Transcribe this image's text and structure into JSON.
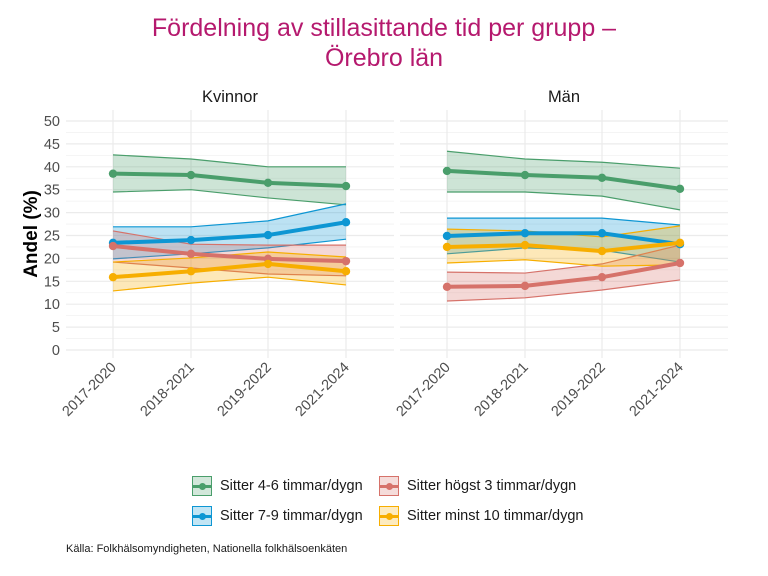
{
  "title_line1": "Fördelning av stillasittande tid per grupp –",
  "title_line2": "Örebro län",
  "caption": "Källa: Folkhälsomyndigheten, Nationella folkhälsoenkäten",
  "chart_data": {
    "type": "line",
    "title": "Fördelning av stillasittande tid per grupp – Örebro län",
    "ylabel": "Andel (%)",
    "xlabel": "",
    "ylim": [
      0,
      50
    ],
    "yticks": [
      "0",
      "5",
      "10",
      "15",
      "20",
      "25",
      "30",
      "35",
      "40",
      "45",
      "50"
    ],
    "categories": [
      "2017-2020",
      "2018-2021",
      "2019-2022",
      "2021-2024"
    ],
    "grid": true,
    "legend_position": "bottom",
    "panels": [
      {
        "name": "Kvinnor",
        "series": [
          {
            "name": "Sitter 4-6 timmar/dygn",
            "color": "#4a9e6b",
            "values": [
              38.5,
              38.2,
              36.5,
              35.8
            ],
            "lower": [
              34.5,
              35.0,
              33.2,
              31.7
            ],
            "upper": [
              42.6,
              41.7,
              40.0,
              40.0
            ]
          },
          {
            "name": "Sitter 7-9 timmar/dygn",
            "color": "#0d96d3",
            "values": [
              23.4,
              24.0,
              25.1,
              27.9
            ],
            "lower": [
              19.9,
              21.0,
              22.3,
              24.2
            ],
            "upper": [
              26.9,
              26.9,
              28.2,
              31.9
            ]
          },
          {
            "name": "Sitter högst 3 timmar/dygn",
            "color": "#d6726a",
            "values": [
              22.7,
              21.0,
              19.9,
              19.4
            ],
            "lower": [
              19.2,
              17.9,
              16.6,
              16.2
            ],
            "upper": [
              26.0,
              23.1,
              22.9,
              22.9
            ]
          },
          {
            "name": "Sitter minst 10 timmar/dygn",
            "color": "#f7ae00",
            "values": [
              15.9,
              17.2,
              18.8,
              17.2
            ],
            "lower": [
              12.9,
              14.6,
              15.9,
              14.2
            ],
            "upper": [
              19.2,
              20.1,
              21.4,
              20.3
            ]
          }
        ]
      },
      {
        "name": "Män",
        "series": [
          {
            "name": "Sitter 4-6 timmar/dygn",
            "color": "#4a9e6b",
            "values": [
              39.1,
              38.2,
              37.6,
              35.2
            ],
            "lower": [
              34.5,
              34.5,
              33.6,
              30.6
            ],
            "upper": [
              43.4,
              41.7,
              41.0,
              39.7
            ]
          },
          {
            "name": "Sitter 7-9 timmar/dygn",
            "color": "#0d96d3",
            "values": [
              24.9,
              25.5,
              25.5,
              23.1
            ],
            "lower": [
              21.0,
              22.3,
              21.8,
              19.2
            ],
            "upper": [
              28.8,
              28.8,
              28.8,
              27.3
            ]
          },
          {
            "name": "Sitter högst 3 timmar/dygn",
            "color": "#d6726a",
            "values": [
              13.8,
              14.0,
              15.9,
              19.0
            ],
            "lower": [
              10.7,
              11.4,
              13.1,
              15.3
            ],
            "upper": [
              17.0,
              16.8,
              18.8,
              22.9
            ]
          },
          {
            "name": "Sitter minst 10 timmar/dygn",
            "color": "#f7ae00",
            "values": [
              22.5,
              22.9,
              21.6,
              23.4
            ],
            "lower": [
              19.0,
              19.7,
              18.3,
              18.6
            ],
            "upper": [
              26.4,
              26.0,
              24.7,
              27.1
            ]
          }
        ]
      }
    ],
    "legend": [
      {
        "label": "Sitter 4-6 timmar/dygn",
        "color": "#4a9e6b"
      },
      {
        "label": "Sitter högst 3 timmar/dygn",
        "color": "#d6726a"
      },
      {
        "label": "Sitter 7-9 timmar/dygn",
        "color": "#0d96d3"
      },
      {
        "label": "Sitter minst 10 timmar/dygn",
        "color": "#f7ae00"
      }
    ]
  }
}
